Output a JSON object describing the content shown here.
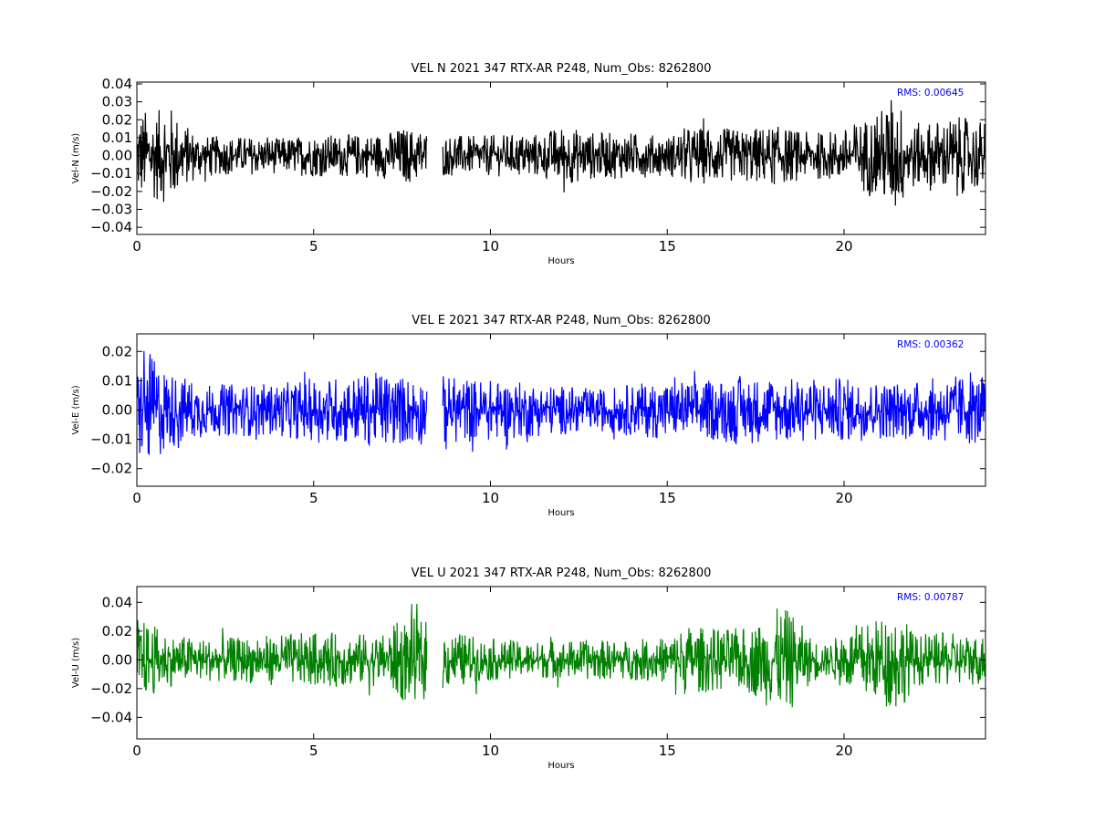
{
  "chart_data": [
    {
      "type": "line",
      "title": "VEL N 2021 347 RTX-AR  P248, Num_Obs: 8262800",
      "xlabel": "Hours",
      "ylabel": "Vel-N (m/s)",
      "xlim": [
        0,
        24
      ],
      "ylim": [
        -0.044,
        0.041
      ],
      "xticks": [
        "0",
        "5",
        "10",
        "15",
        "20"
      ],
      "yticks": [
        "0.04",
        "0.03",
        "0.02",
        "0.01",
        "0.00",
        "−0.01",
        "−0.02",
        "−0.03",
        "−0.04"
      ],
      "ytick_values": [
        0.04,
        0.03,
        0.02,
        0.01,
        0.0,
        -0.01,
        -0.02,
        -0.03,
        -0.04
      ],
      "rms_label": "RMS:  0.00645",
      "color": "#000000",
      "gap_hours": [
        8.2,
        8.65
      ],
      "envelope": {
        "x": [
          0,
          0.5,
          1.0,
          1.3,
          2,
          3,
          4,
          5,
          6,
          7,
          7.5,
          8.2,
          8.65,
          9.5,
          10.5,
          11.5,
          12,
          13,
          14,
          15,
          15.5,
          16,
          17,
          18,
          19,
          20,
          20.5,
          21,
          21.4,
          22,
          22.5,
          23,
          24
        ],
        "y": [
          0.027,
          0.025,
          0.028,
          0.018,
          0.011,
          0.011,
          0.01,
          0.012,
          0.012,
          0.013,
          0.016,
          0.015,
          0.012,
          0.011,
          0.012,
          0.013,
          0.017,
          0.013,
          0.013,
          0.011,
          0.016,
          0.016,
          0.015,
          0.017,
          0.013,
          0.015,
          0.021,
          0.025,
          0.036,
          0.018,
          0.02,
          0.022,
          0.02
        ]
      }
    },
    {
      "type": "line",
      "title": "VEL E 2021 347 RTX-AR  P248, Num_Obs: 8262800",
      "xlabel": "Hours",
      "ylabel": "Vel-E (m/s)",
      "xlim": [
        0,
        24
      ],
      "ylim": [
        -0.026,
        0.026
      ],
      "xticks": [
        "0",
        "5",
        "10",
        "15",
        "20"
      ],
      "yticks": [
        "0.02",
        "0.01",
        "0.00",
        "−0.01",
        "−0.02"
      ],
      "ytick_values": [
        0.02,
        0.01,
        0.0,
        -0.01,
        -0.02
      ],
      "rms_label": "RMS:  0.00362",
      "color": "#0000ff",
      "gap_hours": [
        8.2,
        8.65
      ],
      "envelope": {
        "x": [
          0,
          0.3,
          1,
          2,
          3,
          4,
          5,
          6,
          7,
          7.5,
          8.2,
          8.65,
          9.5,
          10.5,
          11.5,
          12.5,
          13,
          14,
          15,
          16,
          17,
          18,
          19,
          20,
          21,
          22,
          23,
          24
        ],
        "y": [
          0.017,
          0.02,
          0.013,
          0.009,
          0.009,
          0.009,
          0.011,
          0.012,
          0.013,
          0.012,
          0.012,
          0.012,
          0.011,
          0.01,
          0.009,
          0.008,
          0.007,
          0.009,
          0.01,
          0.01,
          0.012,
          0.011,
          0.011,
          0.011,
          0.01,
          0.01,
          0.012,
          0.012
        ]
      }
    },
    {
      "type": "line",
      "title": "VEL U 2021 347 RTX-AR  P248, Num_Obs: 8262800",
      "xlabel": "Hours",
      "ylabel": "Vel-U (m/s)",
      "xlim": [
        0,
        24
      ],
      "ylim": [
        -0.055,
        0.051
      ],
      "xticks": [
        "0",
        "5",
        "10",
        "15",
        "20"
      ],
      "yticks": [
        "0.04",
        "0.02",
        "0.00",
        "−0.02",
        "−0.04"
      ],
      "ytick_values": [
        0.04,
        0.02,
        0.0,
        -0.02,
        -0.04
      ],
      "rms_label": "RMS:  0.00787",
      "color": "#008000",
      "gap_hours": [
        8.2,
        8.65
      ],
      "envelope": {
        "x": [
          0,
          0.5,
          1,
          2,
          3,
          4,
          5,
          6,
          7,
          7.5,
          8.2,
          8.65,
          9.5,
          10.5,
          11.5,
          12.5,
          13,
          14,
          15,
          15.5,
          16,
          17,
          17.5,
          18,
          18.5,
          19,
          19.5,
          20,
          21,
          21.5,
          22,
          23,
          24
        ],
        "y": [
          0.03,
          0.024,
          0.018,
          0.015,
          0.016,
          0.018,
          0.019,
          0.019,
          0.018,
          0.03,
          0.028,
          0.022,
          0.017,
          0.013,
          0.013,
          0.014,
          0.014,
          0.014,
          0.016,
          0.025,
          0.023,
          0.022,
          0.026,
          0.036,
          0.035,
          0.018,
          0.01,
          0.022,
          0.03,
          0.038,
          0.018,
          0.019,
          0.018
        ]
      }
    }
  ]
}
